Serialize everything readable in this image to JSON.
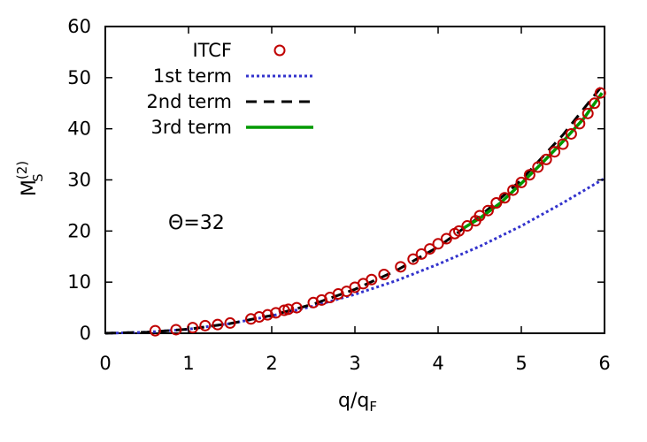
{
  "chart_data": {
    "type": "line",
    "xlabel": "q/q",
    "xlabel_sub": "F",
    "ylabel": "M",
    "ylabel_sub": "S",
    "ylabel_sup": "(2)",
    "xlim": [
      0,
      6
    ],
    "ylim": [
      0,
      60
    ],
    "xticks": [
      0,
      1,
      2,
      3,
      4,
      5,
      6
    ],
    "yticks": [
      0,
      10,
      20,
      30,
      40,
      50,
      60
    ],
    "grid": false,
    "legend_position": "top-left",
    "annotation": "Θ=32",
    "series": [
      {
        "name": "ITCF",
        "style": "markers",
        "marker": "open-circle",
        "color": "#c00000",
        "x": [
          0.6,
          0.85,
          1.05,
          1.2,
          1.35,
          1.5,
          1.75,
          1.85,
          1.95,
          2.05,
          2.15,
          2.2,
          2.3,
          2.5,
          2.6,
          2.7,
          2.8,
          2.9,
          3.0,
          3.1,
          3.2,
          3.35,
          3.55,
          3.7,
          3.8,
          3.9,
          4.0,
          4.1,
          4.2,
          4.25,
          4.35,
          4.45,
          4.5,
          4.6,
          4.7,
          4.8,
          4.9,
          5.0,
          5.1,
          5.2,
          5.3,
          5.4,
          5.5,
          5.6,
          5.7,
          5.8,
          5.88,
          5.95
        ],
        "y": [
          0.5,
          0.7,
          1.1,
          1.5,
          1.7,
          2.0,
          2.8,
          3.2,
          3.6,
          4.0,
          4.5,
          4.7,
          5.0,
          6.0,
          6.5,
          7.0,
          7.7,
          8.2,
          9.0,
          9.7,
          10.5,
          11.5,
          13.0,
          14.5,
          15.5,
          16.5,
          17.5,
          18.5,
          19.5,
          20.0,
          21.0,
          22.0,
          23.0,
          24.0,
          25.5,
          26.5,
          28.0,
          29.5,
          31.0,
          32.5,
          34.0,
          35.5,
          37.0,
          39.0,
          41.0,
          43.0,
          45.0,
          47.0
        ]
      },
      {
        "name": "1st term",
        "style": "dotted",
        "color": "#3333cc",
        "x": [
          0,
          0.5,
          1,
          1.5,
          2,
          2.5,
          3,
          3.5,
          4,
          4.5,
          5,
          5.5,
          6
        ],
        "y": [
          0,
          0.2,
          0.8,
          1.9,
          3.4,
          5.3,
          7.6,
          10.3,
          13.5,
          17.0,
          21.0,
          25.5,
          30.3
        ]
      },
      {
        "name": "2nd term",
        "style": "dashed",
        "color": "#000000",
        "x": [
          0,
          0.5,
          1,
          1.5,
          2,
          2.5,
          3,
          3.5,
          4,
          4.5,
          5,
          5.5,
          6
        ],
        "y": [
          0,
          0.2,
          0.8,
          1.9,
          3.5,
          5.7,
          8.6,
          12.3,
          16.9,
          22.8,
          30.0,
          38.8,
          49.0
        ]
      },
      {
        "name": "3rd term",
        "style": "solid",
        "color": "#009900",
        "x": [
          4.3,
          4.5,
          4.75,
          5.0,
          5.25,
          5.5,
          5.75,
          5.97
        ],
        "y": [
          20.5,
          22.5,
          25.5,
          29.3,
          33.3,
          37.5,
          42.0,
          47.0
        ]
      }
    ]
  }
}
